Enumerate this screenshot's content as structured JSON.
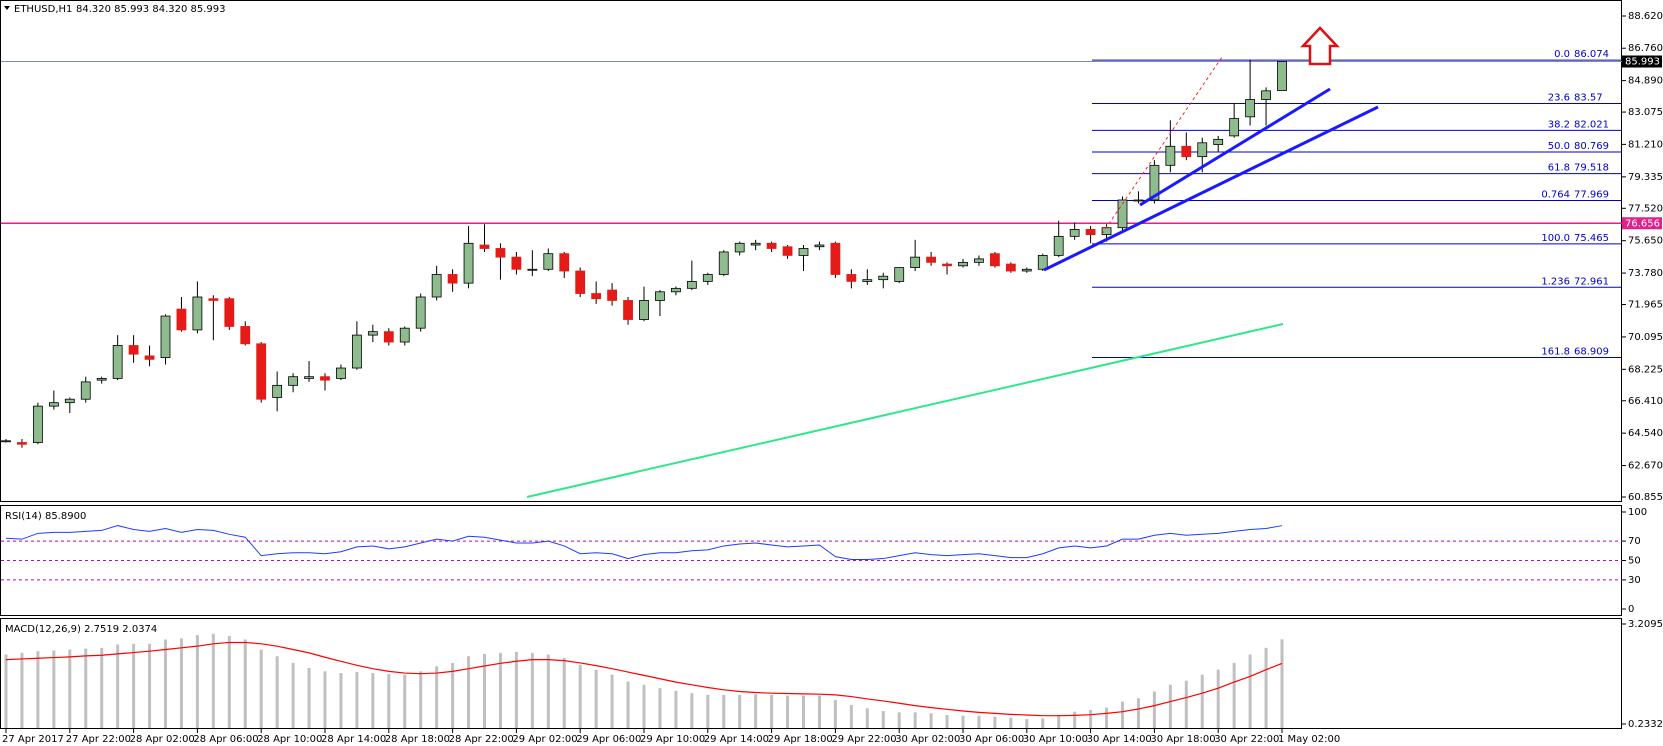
{
  "chart_data": [
    {
      "type": "candlestick",
      "title": "ETHUSD,H1",
      "subtitle": "84.320 85.993 84.320 85.993",
      "categories": [
        "27 Apr 2017",
        null,
        null,
        null,
        "27 Apr 22:00",
        null,
        null,
        null,
        "28 Apr 02:00",
        null,
        null,
        null,
        "28 Apr 06:00",
        null,
        null,
        null,
        "28 Apr 10:00",
        null,
        null,
        null,
        "28 Apr 14:00",
        null,
        null,
        null,
        "28 Apr 18:00",
        null,
        null,
        null,
        "28 Apr 22:00",
        null,
        null,
        null,
        "29 Apr 02:00",
        null,
        null,
        null,
        "29 Apr 06:00",
        null,
        null,
        null,
        "29 Apr 10:00",
        null,
        null,
        null,
        "29 Apr 14:00",
        null,
        null,
        null,
        "29 Apr 18:00",
        null,
        null,
        null,
        "29 Apr 22:00",
        null,
        null,
        null,
        "30 Apr 02:00",
        null,
        null,
        null,
        "30 Apr 06:00",
        null,
        null,
        null,
        "30 Apr 10:00",
        null,
        null,
        null,
        "30 Apr 14:00",
        null,
        null,
        null,
        "30 Apr 18:00",
        null,
        null,
        null,
        "30 Apr 22:00",
        null,
        null,
        null,
        "1 May 02:00"
      ],
      "open": [
        64.1,
        64.0,
        64.0,
        66.1,
        66.3,
        66.5,
        67.6,
        67.7,
        69.6,
        69.0,
        68.9,
        71.7,
        70.5,
        72.3,
        72.3,
        70.7,
        69.7,
        66.6,
        67.3,
        67.7,
        67.8,
        67.7,
        68.3,
        70.2,
        70.4,
        69.8,
        70.6,
        72.4,
        73.7,
        73.2,
        75.4,
        75.2,
        74.7,
        74.0,
        74.0,
        74.9,
        73.9,
        72.6,
        72.8,
        72.2,
        71.1,
        72.2,
        72.7,
        72.9,
        73.3,
        73.7,
        75.0,
        75.4,
        75.5,
        75.3,
        74.8,
        75.3,
        75.5,
        73.7,
        73.3,
        73.4,
        73.3,
        74.1,
        74.7,
        74.3,
        74.2,
        74.4,
        74.9,
        74.3,
        73.9,
        74.0,
        74.8,
        75.9,
        76.3,
        76.0,
        76.4,
        78.0,
        78.0,
        80.0,
        81.1,
        80.5,
        81.2,
        81.7,
        82.8,
        83.8,
        84.32
      ],
      "high": [
        64.2,
        64.2,
        66.3,
        67.0,
        66.6,
        67.8,
        67.8,
        70.2,
        70.2,
        69.6,
        71.4,
        72.4,
        73.3,
        72.5,
        72.4,
        71.0,
        69.8,
        68.1,
        68.0,
        68.7,
        68.0,
        68.5,
        71.0,
        70.8,
        70.6,
        70.7,
        72.6,
        74.2,
        74.0,
        76.5,
        76.6,
        75.5,
        75.0,
        75.1,
        75.2,
        75.0,
        74.1,
        73.3,
        73.2,
        72.4,
        73.0,
        72.8,
        73.0,
        74.5,
        73.8,
        75.1,
        75.6,
        75.7,
        75.6,
        75.4,
        75.4,
        75.6,
        75.6,
        74.0,
        74.0,
        73.8,
        74.1,
        75.7,
        75.0,
        74.4,
        74.6,
        74.8,
        75.0,
        74.4,
        74.1,
        74.9,
        76.8,
        76.7,
        76.5,
        76.6,
        78.2,
        78.5,
        80.3,
        82.6,
        81.9,
        81.6,
        81.7,
        83.6,
        86.1,
        84.5,
        85.993
      ],
      "low": [
        64.0,
        63.7,
        63.9,
        65.9,
        65.7,
        66.3,
        67.4,
        67.6,
        68.6,
        68.4,
        68.5,
        70.4,
        70.3,
        69.9,
        70.5,
        69.6,
        66.3,
        65.8,
        66.9,
        67.5,
        67.0,
        67.6,
        68.2,
        69.8,
        69.6,
        69.6,
        70.4,
        72.2,
        72.7,
        72.9,
        75.0,
        73.4,
        73.7,
        73.6,
        73.9,
        73.5,
        72.4,
        72.0,
        71.9,
        70.8,
        71.0,
        71.3,
        72.5,
        72.8,
        73.1,
        73.6,
        74.8,
        75.1,
        75.0,
        74.6,
        73.9,
        75.1,
        73.5,
        72.9,
        73.1,
        72.9,
        73.2,
        73.9,
        74.2,
        73.7,
        74.1,
        74.2,
        74.1,
        73.8,
        73.8,
        73.9,
        74.7,
        75.7,
        75.5,
        75.6,
        76.2,
        77.8,
        77.8,
        79.6,
        80.3,
        79.6,
        80.8,
        81.6,
        82.3,
        82.3,
        84.32
      ],
      "close": [
        64.1,
        63.9,
        66.1,
        66.3,
        66.5,
        67.5,
        67.7,
        69.6,
        69.1,
        68.8,
        71.3,
        70.5,
        72.4,
        72.2,
        70.7,
        69.7,
        66.5,
        67.3,
        67.8,
        67.8,
        67.6,
        68.3,
        70.2,
        70.4,
        69.8,
        70.6,
        72.4,
        73.7,
        73.2,
        75.5,
        75.2,
        74.7,
        74.0,
        74.0,
        74.9,
        73.9,
        72.6,
        72.3,
        72.2,
        71.1,
        72.2,
        72.7,
        72.9,
        73.3,
        73.7,
        75.0,
        75.5,
        75.5,
        75.2,
        74.8,
        75.2,
        75.4,
        73.7,
        73.3,
        73.4,
        73.6,
        74.1,
        74.7,
        74.4,
        74.2,
        74.4,
        74.6,
        74.2,
        73.9,
        74.0,
        74.8,
        75.9,
        76.3,
        76.0,
        76.4,
        78.0,
        78.0,
        80.0,
        81.1,
        80.5,
        81.3,
        81.5,
        82.7,
        83.8,
        84.3,
        85.993
      ],
      "up_color": "#8fbc8f",
      "down_color": "#e41b17",
      "wick_color": "#000000",
      "ylim": [
        60.855,
        88.62
      ],
      "yticks": [
        {
          "value": 60.855,
          "label": "60.855"
        },
        {
          "value": 62.67,
          "label": "62.670"
        },
        {
          "value": 64.54,
          "label": "64.540"
        },
        {
          "value": 66.41,
          "label": "66.410"
        },
        {
          "value": 68.225,
          "label": "68.225"
        },
        {
          "value": 70.095,
          "label": "70.095"
        },
        {
          "value": 71.965,
          "label": "71.965"
        },
        {
          "value": 73.78,
          "label": "73.780"
        },
        {
          "value": 75.65,
          "label": "75.650"
        },
        {
          "value": 77.52,
          "label": "77.520"
        },
        {
          "value": 79.335,
          "label": "79.335"
        },
        {
          "value": 81.21,
          "label": "81.210"
        },
        {
          "value": 83.075,
          "label": "83.075"
        },
        {
          "value": 84.89,
          "label": "84.890"
        },
        {
          "value": 86.76,
          "label": "86.760"
        },
        {
          "value": 88.62,
          "label": "88.620"
        }
      ],
      "fib_levels": [
        {
          "label": "0.0",
          "value": 86.074
        },
        {
          "label": "23.6",
          "value": 83.57
        },
        {
          "label": "38.2",
          "value": 82.021
        },
        {
          "label": "50.0",
          "value": 80.769
        },
        {
          "label": "61.8",
          "value": 79.518
        },
        {
          "label": "0.764",
          "value": 77.969
        },
        {
          "label": "100.0",
          "value": 75.465
        },
        {
          "label": "1.236",
          "value": 72.961
        },
        {
          "label": "161.8",
          "value": 68.909
        }
      ],
      "fib_color": "#0000cd",
      "resistance": 76.656,
      "resistance_color": "#e0218a",
      "last_price": 85.993
    },
    {
      "type": "line",
      "title": "RSI(14) 85.8900",
      "color": "#1e3cff",
      "values": [
        73,
        72,
        78,
        79,
        79,
        80,
        81,
        86,
        82,
        80,
        83,
        79,
        82,
        81,
        77,
        74,
        55,
        57,
        58,
        58,
        57,
        59,
        64,
        65,
        62,
        64,
        68,
        72,
        70,
        75,
        74,
        71,
        68,
        68,
        70,
        65,
        57,
        58,
        57,
        52,
        56,
        58,
        58,
        60,
        61,
        65,
        67,
        68,
        66,
        64,
        65,
        66,
        54,
        51,
        51,
        52,
        55,
        58,
        56,
        55,
        56,
        57,
        55,
        53,
        53,
        57,
        63,
        65,
        63,
        65,
        72,
        72,
        76,
        78,
        76,
        77,
        78,
        80,
        82,
        83,
        85.89
      ],
      "ylim": [
        0,
        100
      ],
      "yticks": [
        0,
        30,
        50,
        70,
        100
      ]
    },
    {
      "type": "macd",
      "title": "MACD(12,26,9) 2.7519 2.0374",
      "hist_color": "#c0c0c0",
      "signal_color": "#ff0000",
      "values": [
        2.3,
        2.35,
        2.4,
        2.42,
        2.45,
        2.48,
        2.5,
        2.6,
        2.62,
        2.62,
        2.75,
        2.78,
        2.88,
        2.92,
        2.85,
        2.75,
        2.45,
        2.25,
        2.05,
        1.9,
        1.8,
        1.75,
        1.78,
        1.75,
        1.72,
        1.7,
        1.8,
        1.95,
        2.05,
        2.25,
        2.32,
        2.35,
        2.38,
        2.35,
        2.3,
        2.2,
        2.0,
        1.85,
        1.7,
        1.5,
        1.4,
        1.3,
        1.22,
        1.15,
        1.1,
        1.1,
        1.1,
        1.12,
        1.1,
        1.08,
        1.08,
        1.08,
        0.95,
        0.8,
        0.7,
        0.62,
        0.58,
        0.58,
        0.55,
        0.5,
        0.48,
        0.48,
        0.45,
        0.42,
        0.38,
        0.4,
        0.5,
        0.6,
        0.65,
        0.72,
        0.9,
        1.0,
        1.2,
        1.4,
        1.52,
        1.7,
        1.85,
        2.05,
        2.3,
        2.5,
        2.7519
      ],
      "signal": [
        2.15,
        2.17,
        2.19,
        2.21,
        2.23,
        2.26,
        2.28,
        2.32,
        2.36,
        2.4,
        2.45,
        2.5,
        2.55,
        2.62,
        2.66,
        2.66,
        2.62,
        2.55,
        2.45,
        2.35,
        2.22,
        2.1,
        1.98,
        1.88,
        1.8,
        1.75,
        1.73,
        1.75,
        1.8,
        1.88,
        1.96,
        2.04,
        2.1,
        2.15,
        2.15,
        2.12,
        2.05,
        1.97,
        1.88,
        1.78,
        1.68,
        1.58,
        1.48,
        1.4,
        1.32,
        1.25,
        1.2,
        1.17,
        1.15,
        1.14,
        1.13,
        1.12,
        1.1,
        1.05,
        0.98,
        0.92,
        0.85,
        0.78,
        0.72,
        0.67,
        0.62,
        0.58,
        0.55,
        0.52,
        0.5,
        0.48,
        0.48,
        0.49,
        0.51,
        0.55,
        0.6,
        0.68,
        0.78,
        0.9,
        1.02,
        1.15,
        1.3,
        1.48,
        1.65,
        1.85,
        2.0374
      ],
      "ylim": [
        0.2332,
        3.2095
      ],
      "yticks": [
        0.2332,
        3.2095
      ]
    }
  ]
}
